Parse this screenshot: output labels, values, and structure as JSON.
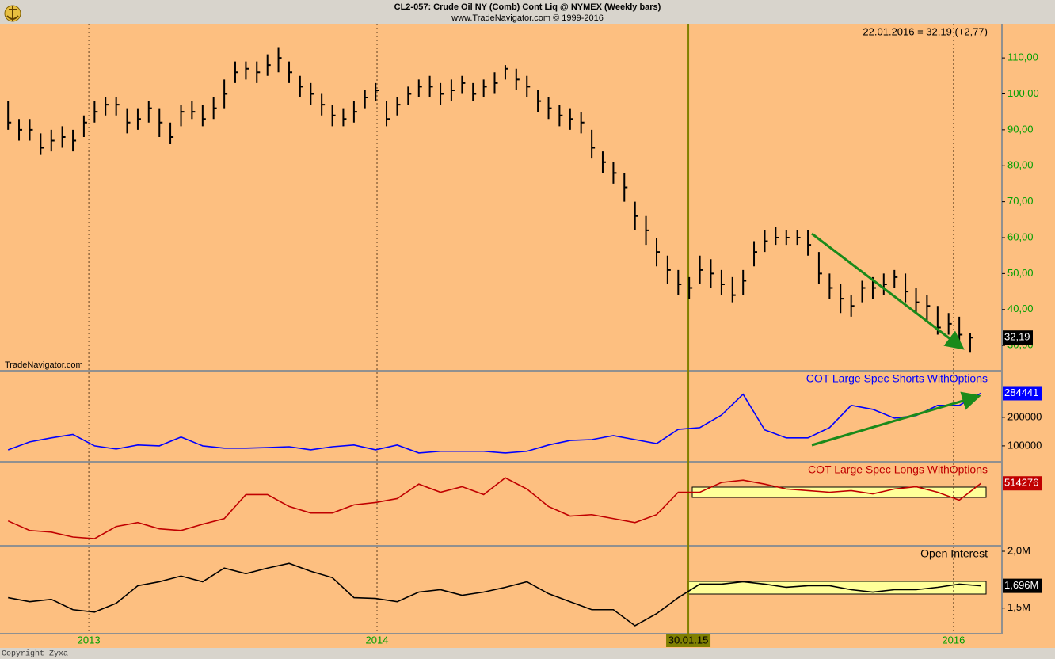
{
  "header": {
    "title": "CL2-057:  Crude Oil NY (Comb) Cont Liq @ NYMEX  (Weekly bars)",
    "subtitle": "www.TradeNavigator.com © 1999-2016"
  },
  "watermark": "TradeNavigator.com",
  "copyright": "Copyright Zyxa",
  "chart_data": [
    {
      "type": "ohlc",
      "color": "#000000",
      "tick_color": "#00a000",
      "grid": true,
      "annotation": "22.01.2016 = 32,19 (+2,77)",
      "last_value_label": "32,19",
      "xlim": [
        2012.692,
        2016.168
      ],
      "xticks": [
        {
          "value": 2013,
          "label": "2013"
        },
        {
          "value": 2014,
          "label": "2014"
        },
        {
          "value": 2015.08,
          "label": "30.01.15",
          "color": "#808000"
        },
        {
          "value": 2016,
          "label": "2016"
        }
      ],
      "ylim": [
        23.2,
        119.5
      ],
      "yticks": [
        {
          "value": 110,
          "label": "110,00"
        },
        {
          "value": 100,
          "label": "100,00"
        },
        {
          "value": 90,
          "label": "90,00"
        },
        {
          "value": 80,
          "label": "80,00"
        },
        {
          "value": 70,
          "label": "70,00"
        },
        {
          "value": 60,
          "label": "60,00"
        },
        {
          "value": 50,
          "label": "50,00"
        },
        {
          "value": 40,
          "label": "40,00"
        },
        {
          "value": 30,
          "label": "30,00"
        }
      ],
      "x": [
        2012.72,
        2012.758,
        2012.795,
        2012.833,
        2012.87,
        2012.908,
        2012.945,
        2012.983,
        2013.02,
        2013.058,
        2013.095,
        2013.133,
        2013.17,
        2013.208,
        2013.245,
        2013.283,
        2013.32,
        2013.358,
        2013.395,
        2013.433,
        2013.47,
        2013.508,
        2013.545,
        2013.583,
        2013.62,
        2013.658,
        2013.695,
        2013.733,
        2013.77,
        2013.808,
        2013.845,
        2013.883,
        2013.92,
        2013.958,
        2013.995,
        2014.033,
        2014.07,
        2014.108,
        2014.145,
        2014.183,
        2014.22,
        2014.258,
        2014.295,
        2014.333,
        2014.37,
        2014.408,
        2014.445,
        2014.483,
        2014.52,
        2014.558,
        2014.595,
        2014.633,
        2014.67,
        2014.708,
        2014.745,
        2014.783,
        2014.82,
        2014.858,
        2014.895,
        2014.933,
        2014.97,
        2015.008,
        2015.045,
        2015.083,
        2015.12,
        2015.158,
        2015.195,
        2015.233,
        2015.27,
        2015.308,
        2015.345,
        2015.383,
        2015.42,
        2015.458,
        2015.495,
        2015.533,
        2015.57,
        2015.608,
        2015.645,
        2015.683,
        2015.72,
        2015.758,
        2015.795,
        2015.833,
        2015.87,
        2015.908,
        2015.945,
        2015.983,
        2016.02,
        2016.058
      ],
      "high": [
        98,
        93,
        93,
        89,
        90,
        91,
        90,
        94,
        98,
        99,
        99,
        96,
        96,
        98,
        96,
        92,
        97,
        98,
        97,
        99,
        104,
        109,
        109,
        109,
        111,
        113,
        109,
        105,
        103,
        100,
        97,
        96,
        98,
        101,
        103,
        98,
        99,
        102,
        104,
        105,
        103,
        104,
        105,
        103,
        104,
        106,
        108,
        107,
        105,
        101,
        99,
        97,
        96,
        95,
        90,
        84,
        81,
        78,
        70,
        66,
        60,
        55,
        51,
        49,
        55,
        54,
        51,
        49,
        51,
        59,
        62,
        63,
        62,
        62,
        62,
        56,
        50,
        47,
        44,
        48,
        49,
        50,
        51,
        50,
        46,
        44,
        41,
        39,
        38,
        33.5
      ],
      "low": [
        90,
        87,
        87,
        83,
        84,
        85,
        84,
        88,
        92,
        94,
        94,
        89,
        90,
        92,
        88,
        86,
        91,
        93,
        91,
        93,
        96,
        103,
        104,
        103,
        105,
        106,
        103,
        99,
        97,
        94,
        91,
        91,
        92,
        96,
        98,
        91,
        94,
        97,
        99,
        99,
        97,
        98,
        100,
        98,
        99,
        100,
        104,
        101,
        99,
        95,
        93,
        91,
        90,
        89,
        82,
        78,
        75,
        70,
        62,
        58,
        52,
        47,
        44,
        43,
        47,
        46,
        44,
        42,
        44,
        52,
        56,
        58,
        58,
        58,
        55,
        47,
        43,
        39,
        38,
        42,
        43,
        44,
        46,
        42,
        39,
        37,
        33,
        33,
        30,
        28
      ],
      "close": [
        92,
        90,
        90,
        85,
        87,
        88,
        87,
        92,
        95,
        97,
        97,
        92,
        93,
        96,
        92,
        88,
        95,
        95,
        93,
        96,
        100,
        106,
        107,
        106,
        108,
        110,
        106,
        102,
        100,
        97,
        94,
        93,
        95,
        99,
        101,
        93,
        97,
        100,
        102,
        102,
        100,
        101,
        103,
        100,
        102,
        103,
        107,
        104,
        102,
        98,
        96,
        94,
        93,
        92,
        85,
        81,
        78,
        74,
        66,
        62,
        56,
        51,
        47,
        46,
        51,
        50,
        47,
        44,
        48,
        56,
        59,
        60,
        60,
        60,
        58,
        50,
        46,
        43,
        41,
        46,
        46,
        47,
        49,
        45,
        42,
        41,
        35,
        36,
        33,
        32.19
      ]
    },
    {
      "type": "line",
      "tick_color": "#000000",
      "xlim": [
        2012.692,
        2016.168
      ],
      "ylim": [
        47000,
        358000
      ],
      "yticks": [
        100000,
        200000
      ],
      "x": [
        2012.72,
        2012.795,
        2012.87,
        2012.945,
        2013.02,
        2013.095,
        2013.17,
        2013.245,
        2013.32,
        2013.395,
        2013.47,
        2013.545,
        2013.62,
        2013.695,
        2013.77,
        2013.845,
        2013.92,
        2013.995,
        2014.07,
        2014.145,
        2014.22,
        2014.295,
        2014.37,
        2014.445,
        2014.52,
        2014.595,
        2014.67,
        2014.745,
        2014.82,
        2014.895,
        2014.97,
        2015.045,
        2015.12,
        2015.195,
        2015.27,
        2015.345,
        2015.42,
        2015.495,
        2015.57,
        2015.645,
        2015.72,
        2015.795,
        2015.87,
        2015.945,
        2016.02,
        2016.095
      ],
      "series": [
        {
          "name": "COT Large Spec Shorts WithOptions",
          "color": "#0000ff",
          "values": [
            86000,
            114000,
            128000,
            140000,
            100000,
            89000,
            103000,
            100000,
            131000,
            100000,
            92000,
            92000,
            94000,
            97000,
            86000,
            97000,
            103000,
            86000,
            103000,
            75000,
            81000,
            81000,
            81000,
            75000,
            81000,
            103000,
            119000,
            122000,
            136000,
            122000,
            108000,
            158000,
            164000,
            208000,
            281000,
            156000,
            128000,
            128000,
            164000,
            242000,
            228000,
            197000,
            206000,
            242000,
            242000,
            284441
          ]
        }
      ]
    },
    {
      "type": "line",
      "xlim": [
        2012.692,
        2016.168
      ],
      "ylim": [
        250000,
        600000
      ],
      "x": [
        2012.72,
        2012.795,
        2012.87,
        2012.945,
        2013.02,
        2013.095,
        2013.17,
        2013.245,
        2013.32,
        2013.395,
        2013.47,
        2013.545,
        2013.62,
        2013.695,
        2013.77,
        2013.845,
        2013.92,
        2013.995,
        2014.07,
        2014.145,
        2014.22,
        2014.295,
        2014.37,
        2014.445,
        2014.52,
        2014.595,
        2014.67,
        2014.745,
        2014.82,
        2014.895,
        2014.97,
        2015.045,
        2015.12,
        2015.195,
        2015.27,
        2015.345,
        2015.42,
        2015.495,
        2015.57,
        2015.645,
        2015.72,
        2015.795,
        2015.87,
        2015.945,
        2016.02,
        2016.095
      ],
      "series": [
        {
          "name": "COT Large Spec Longs WithOptions",
          "color": "#c00000",
          "values": [
            353000,
            312000,
            305000,
            284000,
            277000,
            329000,
            346000,
            319000,
            312000,
            339000,
            363000,
            466000,
            466000,
            415000,
            387000,
            387000,
            422000,
            432000,
            449000,
            511000,
            476000,
            500000,
            466000,
            538000,
            490000,
            415000,
            374000,
            380000,
            363000,
            346000,
            380000,
            476000,
            476000,
            518000,
            528000,
            511000,
            490000,
            483000,
            476000,
            483000,
            469000,
            490000,
            500000,
            476000,
            442000,
            514276
          ]
        }
      ]
    },
    {
      "type": "line",
      "tick_color": "#000000",
      "last_value_label": "1,696M",
      "xlim": [
        2012.692,
        2016.168
      ],
      "ylim": [
        1275000,
        2035000
      ],
      "yticks": [
        {
          "value": 2000000,
          "label": "2,0M"
        },
        {
          "value": 1500000,
          "label": "1,5M"
        }
      ],
      "x": [
        2012.72,
        2012.795,
        2012.87,
        2012.945,
        2013.02,
        2013.095,
        2013.17,
        2013.245,
        2013.32,
        2013.395,
        2013.47,
        2013.545,
        2013.62,
        2013.695,
        2013.77,
        2013.845,
        2013.92,
        2013.995,
        2014.07,
        2014.145,
        2014.22,
        2014.295,
        2014.37,
        2014.445,
        2014.52,
        2014.595,
        2014.67,
        2014.745,
        2014.82,
        2014.895,
        2014.97,
        2015.045,
        2015.12,
        2015.195,
        2015.27,
        2015.345,
        2015.42,
        2015.495,
        2015.57,
        2015.645,
        2015.72,
        2015.795,
        2015.87,
        2015.945,
        2016.02,
        2016.095
      ],
      "series": [
        {
          "name": "Open Interest",
          "color": "#000000",
          "values": [
            1592000,
            1556000,
            1577000,
            1486000,
            1465000,
            1542000,
            1697000,
            1732000,
            1782000,
            1732000,
            1852000,
            1803000,
            1852000,
            1894000,
            1824000,
            1768000,
            1592000,
            1585000,
            1556000,
            1641000,
            1662000,
            1613000,
            1641000,
            1683000,
            1732000,
            1627000,
            1556000,
            1486000,
            1486000,
            1345000,
            1451000,
            1592000,
            1711000,
            1711000,
            1732000,
            1711000,
            1683000,
            1697000,
            1697000,
            1662000,
            1641000,
            1662000,
            1662000,
            1683000,
            1711000,
            1696000
          ]
        }
      ]
    }
  ]
}
